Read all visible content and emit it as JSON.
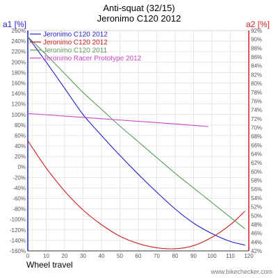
{
  "chart_data": {
    "type": "line",
    "title": "Anti-squat (32/15)",
    "subtitle": "Jeronimo C120 2012",
    "xlabel": "Wheel travel",
    "ylabel_left": "a1 [%]",
    "ylabel_right": "a2 [%]",
    "xlim": [
      0,
      120
    ],
    "ylim_left": [
      -160,
      260
    ],
    "ylim_right": [
      42,
      92
    ],
    "x_ticks": [
      "0",
      "10",
      "20",
      "30",
      "40",
      "50",
      "60",
      "70",
      "80",
      "90",
      "100",
      "110",
      "120"
    ],
    "y_ticks_left": [
      "260%",
      "240%",
      "220%",
      "200%",
      "180%",
      "160%",
      "140%",
      "120%",
      "100%",
      "80%",
      "60%",
      "40%",
      "20%",
      "0%",
      "-20%",
      "-40%",
      "-60%",
      "-80%",
      "-100%",
      "-120%",
      "-140%",
      "-160%"
    ],
    "y_ticks_right": [
      "92%",
      "90%",
      "88%",
      "86%",
      "84%",
      "82%",
      "80%",
      "78%",
      "76%",
      "74%",
      "72%",
      "70%",
      "68%",
      "66%",
      "64%",
      "62%",
      "60%",
      "58%",
      "56%",
      "54%",
      "52%",
      "50%",
      "48%",
      "46%",
      "44%",
      "42%"
    ],
    "grid": true,
    "legend_position": "top-left",
    "series": [
      {
        "name": "Jeronimo C120 2012",
        "color": "#1f1fcc",
        "axis": "left",
        "x": [
          0,
          10,
          20,
          30,
          40,
          50,
          60,
          70,
          80,
          90,
          100,
          110,
          118
        ],
        "y": [
          248,
          200,
          150,
          100,
          60,
          22,
          -14,
          -48,
          -80,
          -107,
          -127,
          -142,
          -149
        ]
      },
      {
        "name": "Jeronimo C120 2012",
        "color": "#cc1f1f",
        "axis": "left",
        "x": [
          0,
          10,
          20,
          30,
          40,
          50,
          60,
          70,
          80,
          90,
          100,
          110,
          118
        ],
        "y": [
          50,
          -2,
          -46,
          -82,
          -110,
          -132,
          -146,
          -154,
          -156,
          -150,
          -134,
          -110,
          -84
        ]
      },
      {
        "name": "Jeronimo C120 2011",
        "color": "#5a9a5a",
        "axis": "left",
        "x": [
          0,
          10,
          20,
          30,
          40,
          50,
          60,
          70,
          80,
          90,
          100,
          110,
          118
        ],
        "y": [
          248,
          214,
          178,
          142,
          110,
          78,
          48,
          18,
          -12,
          -40,
          -68,
          -96,
          -118
        ]
      },
      {
        "name": "Jeronimo Racer Prototype 2012",
        "color": "#cc44cc",
        "axis": "left",
        "x": [
          0,
          20,
          40,
          60,
          80,
          98
        ],
        "y": [
          102,
          97,
          92,
          87,
          82,
          77
        ]
      }
    ]
  },
  "watermark": "www.bikechecker.com"
}
